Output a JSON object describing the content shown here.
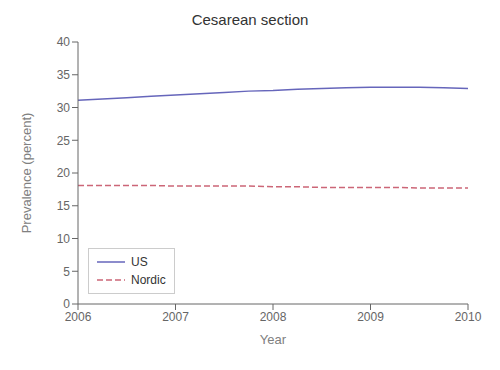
{
  "chart_data": {
    "type": "line",
    "title": "Cesarean section",
    "xlabel": "Year",
    "ylabel": "Prevalence (percent)",
    "x": [
      2006.0,
      2006.25,
      2006.5,
      2006.75,
      2007.0,
      2007.25,
      2007.5,
      2007.75,
      2008.0,
      2008.25,
      2008.5,
      2008.75,
      2009.0,
      2009.25,
      2009.5,
      2009.75,
      2010.0
    ],
    "series": [
      {
        "name": "US",
        "color": "#6666bb",
        "line_style": "solid",
        "values": [
          31.1,
          31.3,
          31.5,
          31.7,
          31.9,
          32.1,
          32.3,
          32.5,
          32.6,
          32.8,
          32.9,
          33.0,
          33.1,
          33.1,
          33.1,
          33.0,
          32.9
        ]
      },
      {
        "name": "Nordic",
        "color": "#cc6677",
        "line_style": "dashed",
        "values": [
          18.1,
          18.1,
          18.1,
          18.1,
          18.0,
          18.0,
          18.0,
          18.0,
          17.9,
          17.9,
          17.8,
          17.8,
          17.8,
          17.8,
          17.7,
          17.7,
          17.7
        ]
      }
    ],
    "xlim": [
      2006,
      2010
    ],
    "ylim": [
      0,
      40
    ],
    "xticks": [
      2006,
      2007,
      2008,
      2009,
      2010
    ],
    "yticks": [
      0,
      5,
      10,
      15,
      20,
      25,
      30,
      35,
      40
    ],
    "legend": "lower left",
    "grid": false
  }
}
